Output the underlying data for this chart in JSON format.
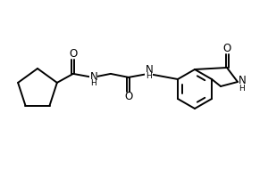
{
  "bg_color": "#ffffff",
  "line_color": "#000000",
  "lw": 1.4,
  "fs": 7.5,
  "figsize": [
    3.0,
    2.0
  ],
  "dpi": 100,
  "xlim": [
    0,
    300
  ],
  "ylim": [
    0,
    200
  ]
}
